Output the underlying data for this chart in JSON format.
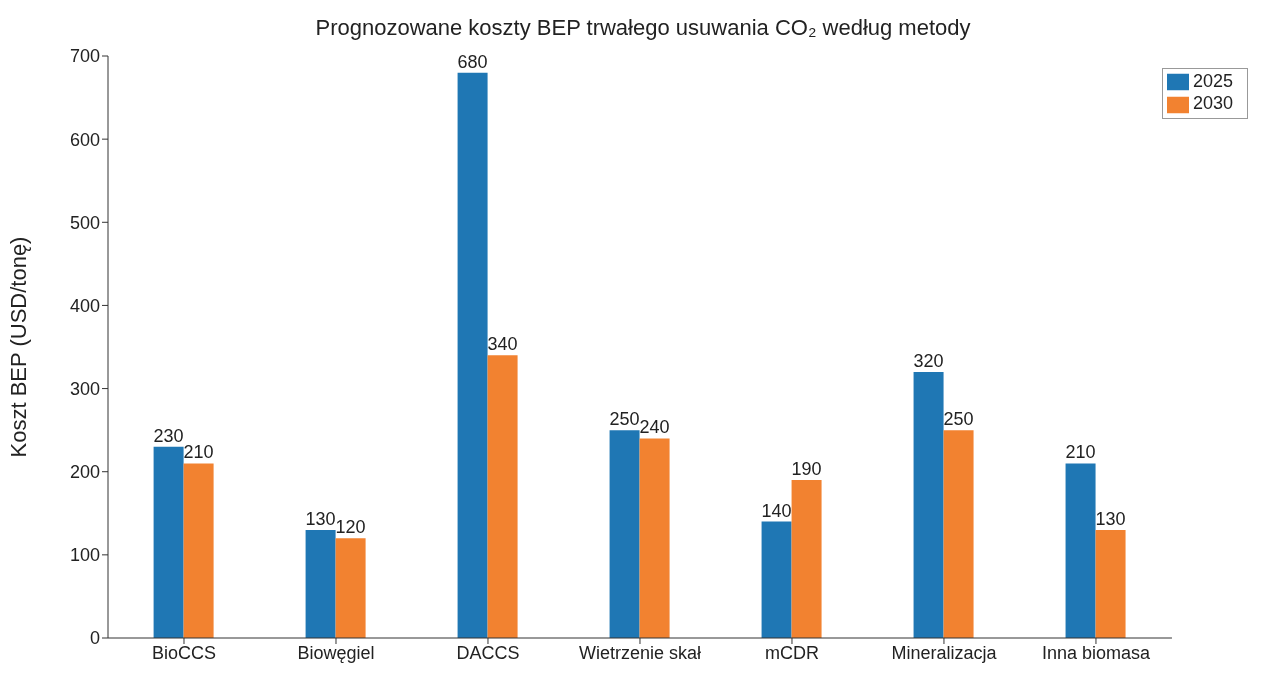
{
  "chart_data": {
    "type": "bar",
    "title": "Prognozowane koszty BEP trwałego usuwania CO₂ według metody",
    "ylabel": "Koszt BEP (USD/tonę)",
    "categories": [
      "BioCCS",
      "Biowęgiel",
      "DACCS",
      "Wietrzenie skał",
      "mCDR",
      "Mineralizacja",
      "Inna biomasa"
    ],
    "series": [
      {
        "name": "2025",
        "color": "#1f77b4",
        "values": [
          230,
          130,
          680,
          250,
          140,
          320,
          210
        ]
      },
      {
        "name": "2030",
        "color": "#f28230",
        "values": [
          210,
          120,
          340,
          240,
          190,
          250,
          130
        ]
      }
    ],
    "ylim": [
      0,
      700
    ],
    "yticks": [
      0,
      100,
      200,
      300,
      400,
      500,
      600,
      700
    ],
    "grid": false,
    "legend": "top right",
    "data_labels": true
  }
}
